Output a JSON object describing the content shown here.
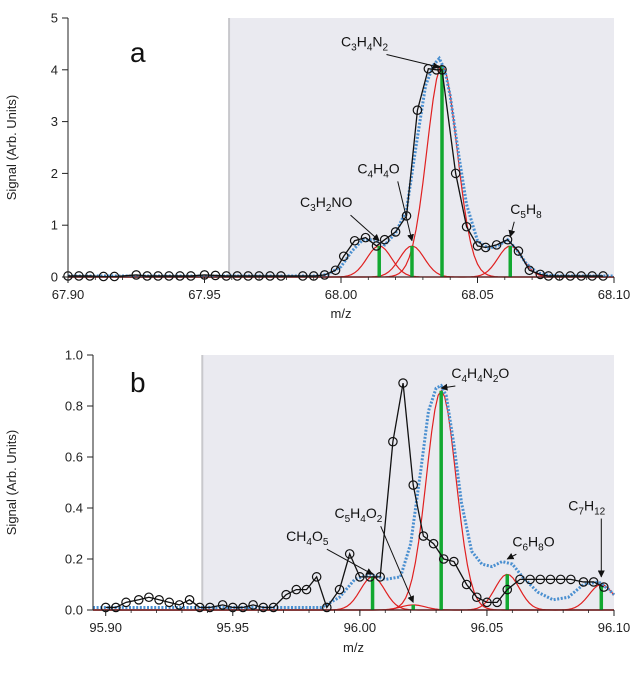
{
  "chart_data": [
    {
      "panel": "a",
      "type": "line",
      "xlabel": "m/z",
      "ylabel": "Signal (Arb. Units)",
      "xlim": [
        67.9,
        68.1
      ],
      "ylim": [
        0,
        5
      ],
      "xticks": [
        "67.90",
        "67.95",
        "68.00",
        "68.05",
        "68.10"
      ],
      "yticks": [
        "0",
        "1",
        "2",
        "3",
        "4",
        "5"
      ],
      "shaded_region_start_x": 67.959,
      "colors": {
        "measured": "#111111",
        "fit_total": "#4a8fd0",
        "peaks": "#e02020",
        "sticks": "#12a830",
        "shade": "#eaeaf0"
      },
      "measured": {
        "x": [
          67.9,
          67.904,
          67.908,
          67.913,
          67.917,
          67.925,
          67.929,
          67.933,
          67.937,
          67.941,
          67.945,
          67.95,
          67.954,
          67.958,
          67.962,
          67.966,
          67.97,
          67.974,
          67.978,
          67.986,
          67.99,
          67.994,
          67.998,
          68.001,
          68.005,
          68.009,
          68.013,
          68.016,
          68.02,
          68.024,
          68.028,
          68.032,
          68.035,
          68.037,
          68.042,
          68.046,
          68.05,
          68.053,
          68.057,
          68.061,
          68.065,
          68.069,
          68.073,
          68.076,
          68.08,
          68.084,
          68.088,
          68.092,
          68.096
        ],
        "y": [
          0.02,
          0.02,
          0.02,
          0.01,
          0.01,
          0.04,
          0.02,
          0.02,
          0.02,
          0.02,
          0.02,
          0.04,
          0.03,
          0.02,
          0.02,
          0.02,
          0.02,
          0.02,
          0.02,
          0.02,
          0.02,
          0.04,
          0.13,
          0.4,
          0.7,
          0.76,
          0.6,
          0.72,
          0.87,
          1.18,
          3.22,
          4.02,
          4.0,
          4.0,
          2.0,
          0.97,
          0.6,
          0.57,
          0.62,
          0.72,
          0.5,
          0.13,
          0.05,
          0.02,
          0.02,
          0.02,
          0.02,
          0.02,
          0.02
        ]
      },
      "fit_total": {
        "x": [
          67.9,
          67.99,
          67.995,
          68.0,
          68.004,
          68.008,
          68.012,
          68.016,
          68.02,
          68.024,
          68.028,
          68.031,
          68.034,
          68.036,
          68.038,
          68.04,
          68.043,
          68.046,
          68.05,
          68.054,
          68.058,
          68.061,
          68.064,
          68.068,
          68.072,
          68.076,
          68.08,
          68.1
        ],
        "y": [
          0.02,
          0.02,
          0.05,
          0.2,
          0.5,
          0.72,
          0.72,
          0.62,
          0.85,
          1.3,
          2.7,
          3.7,
          4.1,
          4.22,
          4.0,
          3.5,
          2.4,
          1.4,
          0.7,
          0.55,
          0.62,
          0.72,
          0.55,
          0.25,
          0.08,
          0.03,
          0.02,
          0.02
        ]
      },
      "peaks": [
        {
          "label": "C3H2NO",
          "center": 68.014,
          "height": 0.6,
          "sigma": 0.0045
        },
        {
          "label": "C4H4O",
          "center": 68.026,
          "height": 0.6,
          "sigma": 0.0045
        },
        {
          "label": "C3H4N2",
          "center": 68.037,
          "height": 4.08,
          "sigma": 0.0055
        },
        {
          "label": "C5H8",
          "center": 68.062,
          "height": 0.6,
          "sigma": 0.0045
        }
      ],
      "annotations": [
        {
          "parts": [
            {
              "t": "C",
              "s": "n"
            },
            {
              "t": "3",
              "s": "sub"
            },
            {
              "t": "H",
              "s": "n"
            },
            {
              "t": "2",
              "s": "sub"
            },
            {
              "t": "NO",
              "s": "n"
            }
          ],
          "text_x": 67.985,
          "text_y": 1.35,
          "arrow_x": 68.014,
          "arrow_y": 0.7
        },
        {
          "parts": [
            {
              "t": "C",
              "s": "n"
            },
            {
              "t": "4",
              "s": "sub"
            },
            {
              "t": "H",
              "s": "n"
            },
            {
              "t": "4",
              "s": "sub"
            },
            {
              "t": "O",
              "s": "n"
            }
          ],
          "text_x": 68.006,
          "text_y": 2.0,
          "arrow_x": 68.026,
          "arrow_y": 0.7
        },
        {
          "parts": [
            {
              "t": "C",
              "s": "n"
            },
            {
              "t": "3",
              "s": "sub"
            },
            {
              "t": "H",
              "s": "n"
            },
            {
              "t": "4",
              "s": "sub"
            },
            {
              "t": "N",
              "s": "n"
            },
            {
              "t": "2",
              "s": "sub"
            }
          ],
          "text_x": 68.0,
          "text_y": 4.45,
          "arrow_x": 68.036,
          "arrow_y": 4.05
        },
        {
          "parts": [
            {
              "t": "C",
              "s": "n"
            },
            {
              "t": "5",
              "s": "sub"
            },
            {
              "t": "H",
              "s": "n"
            },
            {
              "t": "8",
              "s": "sub"
            }
          ],
          "text_x": 68.062,
          "text_y": 1.22,
          "arrow_x": 68.062,
          "arrow_y": 0.78
        }
      ]
    },
    {
      "panel": "b",
      "type": "line",
      "xlabel": "m/z",
      "ylabel": "Signal (Arb. Units)",
      "xlim": [
        95.895,
        96.1
      ],
      "ylim": [
        0,
        1.0
      ],
      "xticks": [
        "95.90",
        "95.95",
        "96.00",
        "96.05",
        "96.10"
      ],
      "yticks": [
        "0.0",
        "0.2",
        "0.4",
        "0.6",
        "0.8",
        "1.0"
      ],
      "shaded_region_start_x": 95.938,
      "colors": {
        "measured": "#111111",
        "fit_total": "#4a8fd0",
        "peaks": "#e02020",
        "sticks": "#12a830",
        "shade": "#eaeaf0"
      },
      "measured": {
        "x": [
          95.9,
          95.904,
          95.908,
          95.913,
          95.917,
          95.921,
          95.925,
          95.929,
          95.933,
          95.937,
          95.941,
          95.946,
          95.95,
          95.954,
          95.958,
          95.962,
          95.966,
          95.971,
          95.975,
          95.979,
          95.983,
          95.987,
          95.992,
          95.996,
          96.0,
          96.004,
          96.008,
          96.013,
          96.017,
          96.021,
          96.025,
          96.029,
          96.033,
          96.037,
          96.042,
          96.046,
          96.05,
          96.054,
          96.058,
          96.063,
          96.067,
          96.071,
          96.075,
          96.079,
          96.083,
          96.088,
          96.092,
          96.096
        ],
        "y": [
          0.01,
          0.01,
          0.03,
          0.04,
          0.05,
          0.04,
          0.03,
          0.02,
          0.04,
          0.01,
          0.01,
          0.02,
          0.01,
          0.01,
          0.02,
          0.01,
          0.01,
          0.06,
          0.08,
          0.08,
          0.13,
          0.01,
          0.08,
          0.22,
          0.13,
          0.13,
          0.13,
          0.66,
          0.89,
          0.49,
          0.29,
          0.26,
          0.2,
          0.19,
          0.1,
          0.05,
          0.03,
          0.03,
          0.08,
          0.12,
          0.12,
          0.12,
          0.12,
          0.12,
          0.12,
          0.11,
          0.11,
          0.09
        ]
      },
      "fit_total": {
        "x": [
          95.895,
          95.985,
          95.992,
          95.998,
          96.004,
          96.01,
          96.016,
          96.02,
          96.024,
          96.027,
          96.03,
          96.032,
          96.034,
          96.037,
          96.04,
          96.044,
          96.048,
          96.052,
          96.056,
          96.06,
          96.064,
          96.07,
          96.076,
          96.082,
          96.088,
          96.094,
          96.098,
          96.1
        ],
        "y": [
          0.01,
          0.01,
          0.05,
          0.12,
          0.14,
          0.12,
          0.13,
          0.26,
          0.55,
          0.78,
          0.87,
          0.88,
          0.84,
          0.65,
          0.42,
          0.23,
          0.18,
          0.17,
          0.19,
          0.18,
          0.13,
          0.07,
          0.04,
          0.05,
          0.1,
          0.11,
          0.08,
          0.06
        ]
      },
      "peaks": [
        {
          "label": "CH4O5",
          "center": 96.005,
          "height": 0.13,
          "sigma": 0.0048
        },
        {
          "label": "C5H4O2",
          "center": 96.021,
          "height": 0.02,
          "sigma": 0.0048
        },
        {
          "label": "C4H4N2O",
          "center": 96.032,
          "height": 0.86,
          "sigma": 0.0058
        },
        {
          "label": "C6H8O",
          "center": 96.058,
          "height": 0.14,
          "sigma": 0.0048
        },
        {
          "label": "C7H12",
          "center": 96.095,
          "height": 0.1,
          "sigma": 0.0048
        }
      ],
      "annotations": [
        {
          "parts": [
            {
              "t": "CH",
              "s": "n"
            },
            {
              "t": "4",
              "s": "sub"
            },
            {
              "t": "O",
              "s": "n"
            },
            {
              "t": "5",
              "s": "sub"
            }
          ],
          "text_x": 95.971,
          "text_y": 0.27,
          "arrow_x": 96.005,
          "arrow_y": 0.14
        },
        {
          "parts": [
            {
              "t": "C",
              "s": "n"
            },
            {
              "t": "5",
              "s": "sub"
            },
            {
              "t": "H",
              "s": "n"
            },
            {
              "t": "4",
              "s": "sub"
            },
            {
              "t": "O",
              "s": "n"
            },
            {
              "t": "2",
              "s": "sub"
            }
          ],
          "text_x": 95.99,
          "text_y": 0.36,
          "arrow_x": 96.021,
          "arrow_y": 0.03
        },
        {
          "parts": [
            {
              "t": "C",
              "s": "n"
            },
            {
              "t": "4",
              "s": "sub"
            },
            {
              "t": "H",
              "s": "n"
            },
            {
              "t": "4",
              "s": "sub"
            },
            {
              "t": "N",
              "s": "n"
            },
            {
              "t": "2",
              "s": "sub"
            },
            {
              "t": "O",
              "s": "n"
            }
          ],
          "text_x": 96.036,
          "text_y": 0.91,
          "arrow_x": 96.032,
          "arrow_y": 0.87
        },
        {
          "parts": [
            {
              "t": "C",
              "s": "n"
            },
            {
              "t": "6",
              "s": "sub"
            },
            {
              "t": "H",
              "s": "n"
            },
            {
              "t": "8",
              "s": "sub"
            },
            {
              "t": "O",
              "s": "n"
            }
          ],
          "text_x": 96.06,
          "text_y": 0.25,
          "arrow_x": 96.058,
          "arrow_y": 0.2
        },
        {
          "parts": [
            {
              "t": "C",
              "s": "n"
            },
            {
              "t": "7",
              "s": "sub"
            },
            {
              "t": "H",
              "s": "n"
            },
            {
              "t": "12",
              "s": "sub"
            }
          ],
          "text_x": 96.082,
          "text_y": 0.39,
          "arrow_x": 96.095,
          "arrow_y": 0.13
        }
      ]
    }
  ]
}
